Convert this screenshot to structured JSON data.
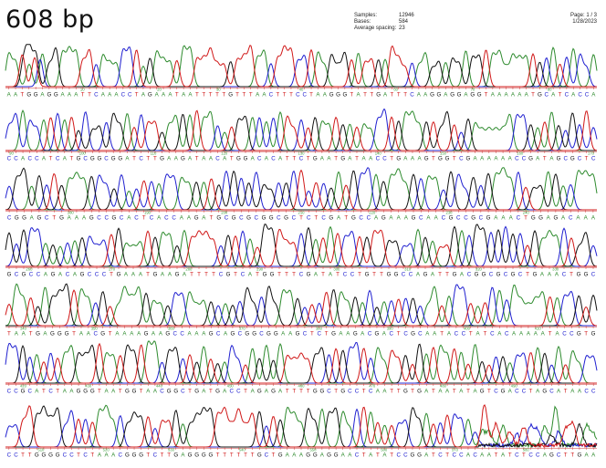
{
  "title": "608 bp",
  "header": {
    "samples_label": "Samples:",
    "samples_value": "12946",
    "bases_label": "Bases:",
    "bases_value": "584",
    "spacing_label": "Average spacing:",
    "spacing_value": "23",
    "page": "Page: 1 / 3",
    "date": "1/28/2023"
  },
  "colors": {
    "A": "#2e8b2e",
    "C": "#2020d0",
    "G": "#111111",
    "T": "#d01818",
    "tick": "#d04040",
    "pos": "#40a040"
  },
  "chart_data": {
    "type": "line",
    "title": "608 bp",
    "legend": "none",
    "grid": false,
    "rows": [
      {
        "sequence": "AATGGAGGAAATTCAAACCTAGAAATAATTTTTGTTTAACTTTCCTAAGGGTATTGATTTCAAGGAGGAGGTAAAAAATGCATCACCA",
        "positions": [
          {
            "label": "10",
            "frac": 0.13
          },
          {
            "label": "20",
            "frac": 0.26
          },
          {
            "label": "30",
            "frac": 0.36
          },
          {
            "label": "40",
            "frac": 0.5
          },
          {
            "label": "60",
            "frac": 0.66
          },
          {
            "label": "70",
            "frac": 0.79
          },
          {
            "label": "80",
            "frac": 0.92
          }
        ]
      },
      {
        "sequence": "CCACCATCATGCGGCGGATCTTGAAGATAACATGGACACATTCTGAATGATAACCTGAAAGTGGTCGAAAAAACCGATAGCGCTC",
        "positions": [
          {
            "label": "90",
            "frac": 0.01
          },
          {
            "label": "100",
            "frac": 0.13
          },
          {
            "label": "110",
            "frac": 0.25
          },
          {
            "label": "120",
            "frac": 0.37
          },
          {
            "label": "130",
            "frac": 0.5
          },
          {
            "label": "140",
            "frac": 0.63
          },
          {
            "label": "150",
            "frac": 0.74
          },
          {
            "label": "160",
            "frac": 0.87
          },
          {
            "label": "170",
            "frac": 0.99
          }
        ]
      },
      {
        "sequence": "CGGAGCTGAAAGCCGCACTCACCAAGATGCGCGCGGCGCTCTCGATGCCAGAAAGCAACGCCGCGAAACTGGAGACAAA",
        "positions": [
          {
            "label": "180",
            "frac": 0.11
          },
          {
            "label": "190",
            "frac": 0.24
          },
          {
            "label": "200",
            "frac": 0.37
          },
          {
            "label": "210",
            "frac": 0.5
          },
          {
            "label": "220",
            "frac": 0.62
          },
          {
            "label": "230",
            "frac": 0.75
          },
          {
            "label": "240",
            "frac": 0.88
          }
        ]
      },
      {
        "sequence": "GCGCCAGACAGCCCTGAAATGAAGATTTTCGTCATGGTTTCGATATCCTGTTGGCCAGATTGACGGCGCGCTGAAACTGGC",
        "positions": [
          {
            "label": "260",
            "frac": 0.04
          },
          {
            "label": "270",
            "frac": 0.18
          },
          {
            "label": "280",
            "frac": 0.31
          },
          {
            "label": "290",
            "frac": 0.43
          },
          {
            "label": "300",
            "frac": 0.56
          },
          {
            "label": "310",
            "frac": 0.68
          },
          {
            "label": "320",
            "frac": 0.8
          },
          {
            "label": "330",
            "frac": 0.93
          }
        ]
      },
      {
        "sequence": "TAATGAGGGTAACGTAAAAGAAGCCAAAGCAGCGGCGGAAGCTCTGAAGACGACTCGCAATACCTATCACAAAAATACCGTG",
        "positions": [
          {
            "label": "340",
            "frac": 0.03
          },
          {
            "label": "350",
            "frac": 0.15
          },
          {
            "label": "360",
            "frac": 0.28
          },
          {
            "label": "370",
            "frac": 0.4
          },
          {
            "label": "380",
            "frac": 0.53
          },
          {
            "label": "390",
            "frac": 0.65
          },
          {
            "label": "400",
            "frac": 0.78
          },
          {
            "label": "410",
            "frac": 0.9
          }
        ]
      },
      {
        "sequence": "CCGCATCTAAGGGTAATGGTAACGGCTGATGACCTAGAGATTTTGGCTGCCTCAATTGTGATAATATAGTCGACCTAGCATAACC",
        "positions": [
          {
            "label": "420",
            "frac": 0.03
          },
          {
            "label": "430",
            "frac": 0.14
          },
          {
            "label": "440",
            "frac": 0.26
          },
          {
            "label": "450",
            "frac": 0.38
          },
          {
            "label": "460",
            "frac": 0.5
          },
          {
            "label": "470",
            "frac": 0.62
          },
          {
            "label": "480",
            "frac": 0.74
          },
          {
            "label": "490",
            "frac": 0.86
          }
        ]
      },
      {
        "sequence": "CCTTGGGGCCTCTAAACGGGTCTTGAGGGGTTTTTTGCTGAAAGGAGGAACTATATCCGGATCTCCACAATATCTCCAGCTTGAA",
        "positions": [
          {
            "label": "510",
            "frac": 0.06
          },
          {
            "label": "520",
            "frac": 0.17
          },
          {
            "label": "530",
            "frac": 0.28
          },
          {
            "label": "540",
            "frac": 0.4
          },
          {
            "label": "550",
            "frac": 0.52
          },
          {
            "label": "560",
            "frac": 0.64
          },
          {
            "label": "570",
            "frac": 0.76
          },
          {
            "label": "580",
            "frac": 0.88
          }
        ],
        "noisy_tail": true
      }
    ]
  }
}
